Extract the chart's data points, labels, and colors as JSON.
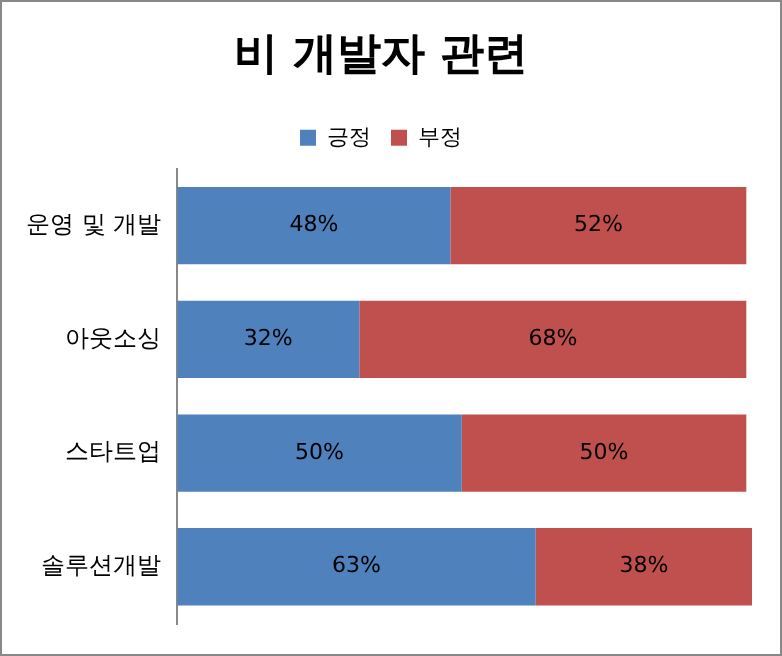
{
  "chart_data": {
    "type": "bar",
    "title": "비 개발자 관련",
    "orientation": "horizontal",
    "stacked": true,
    "categories": [
      "운영 및 개발",
      "아웃소싱",
      "스타트업",
      "솔루션개발"
    ],
    "series": [
      {
        "name": "긍정",
        "color": "#4f81bd",
        "values": [
          48,
          32,
          50,
          63
        ],
        "value_labels": [
          "48%",
          "32%",
          "50%",
          "63%"
        ]
      },
      {
        "name": "부정",
        "color": "#c0504d",
        "values": [
          52,
          68,
          50,
          38
        ],
        "value_labels": [
          "52%",
          "68%",
          "50%",
          "38%"
        ]
      }
    ],
    "xlim": [
      0,
      101
    ],
    "tick_labels": "y",
    "legend": "top"
  }
}
